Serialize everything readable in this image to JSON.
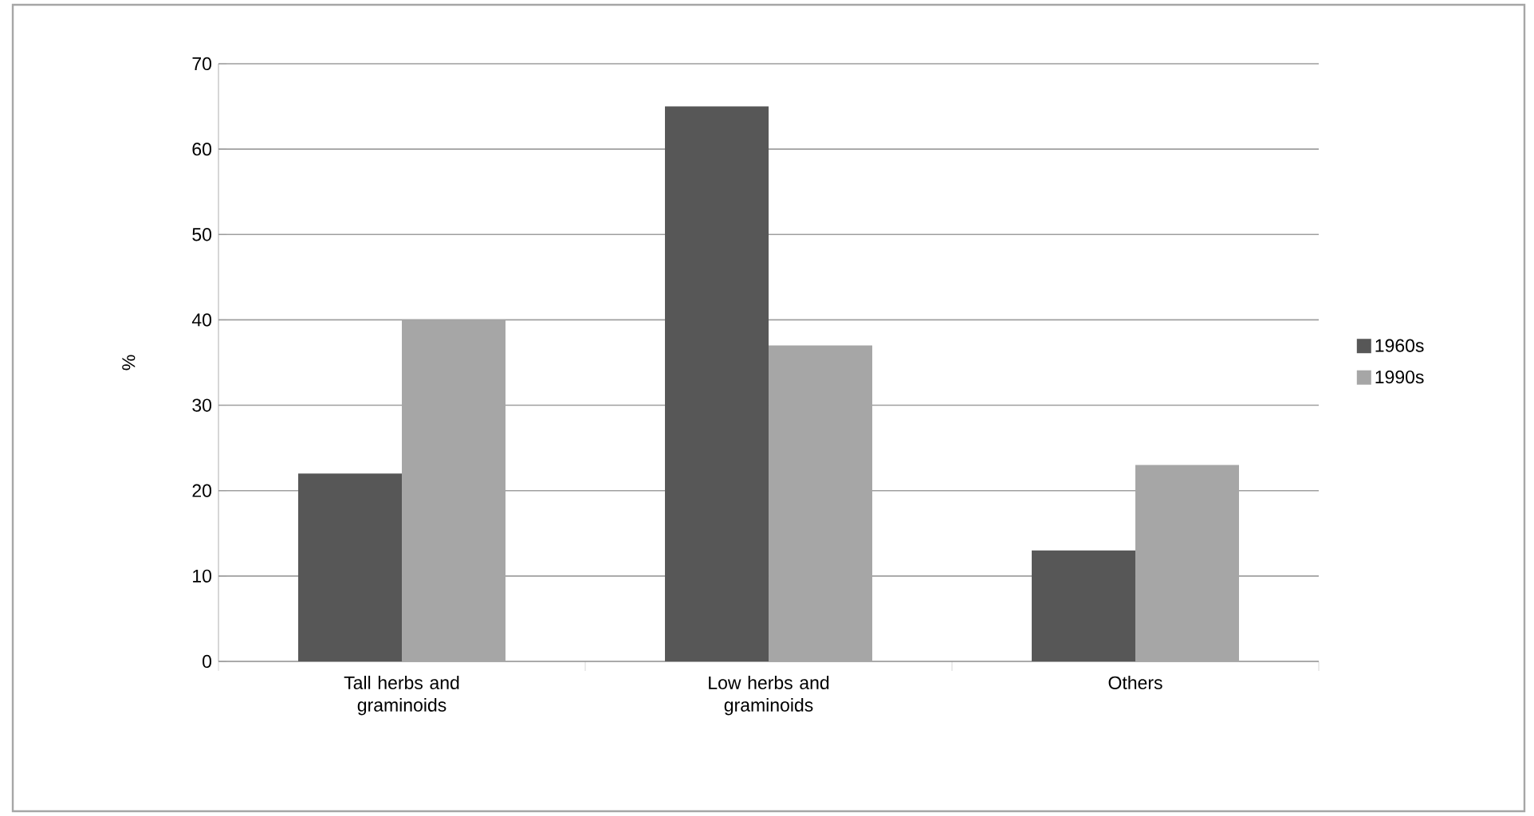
{
  "chart_data": {
    "type": "bar",
    "ylabel": "%",
    "categories": [
      "Tall herbs and graminoids",
      "Low herbs and graminoids",
      "Others"
    ],
    "series": [
      {
        "name": "1960s",
        "color": "#575757",
        "values": [
          22,
          65,
          13
        ]
      },
      {
        "name": "1990s",
        "color": "#a6a6a6",
        "values": [
          40,
          37,
          23
        ]
      }
    ],
    "ylim": [
      0,
      70
    ],
    "yticks": [
      0,
      10,
      20,
      30,
      40,
      50,
      60,
      70
    ],
    "grid": "y",
    "legend": "right"
  }
}
